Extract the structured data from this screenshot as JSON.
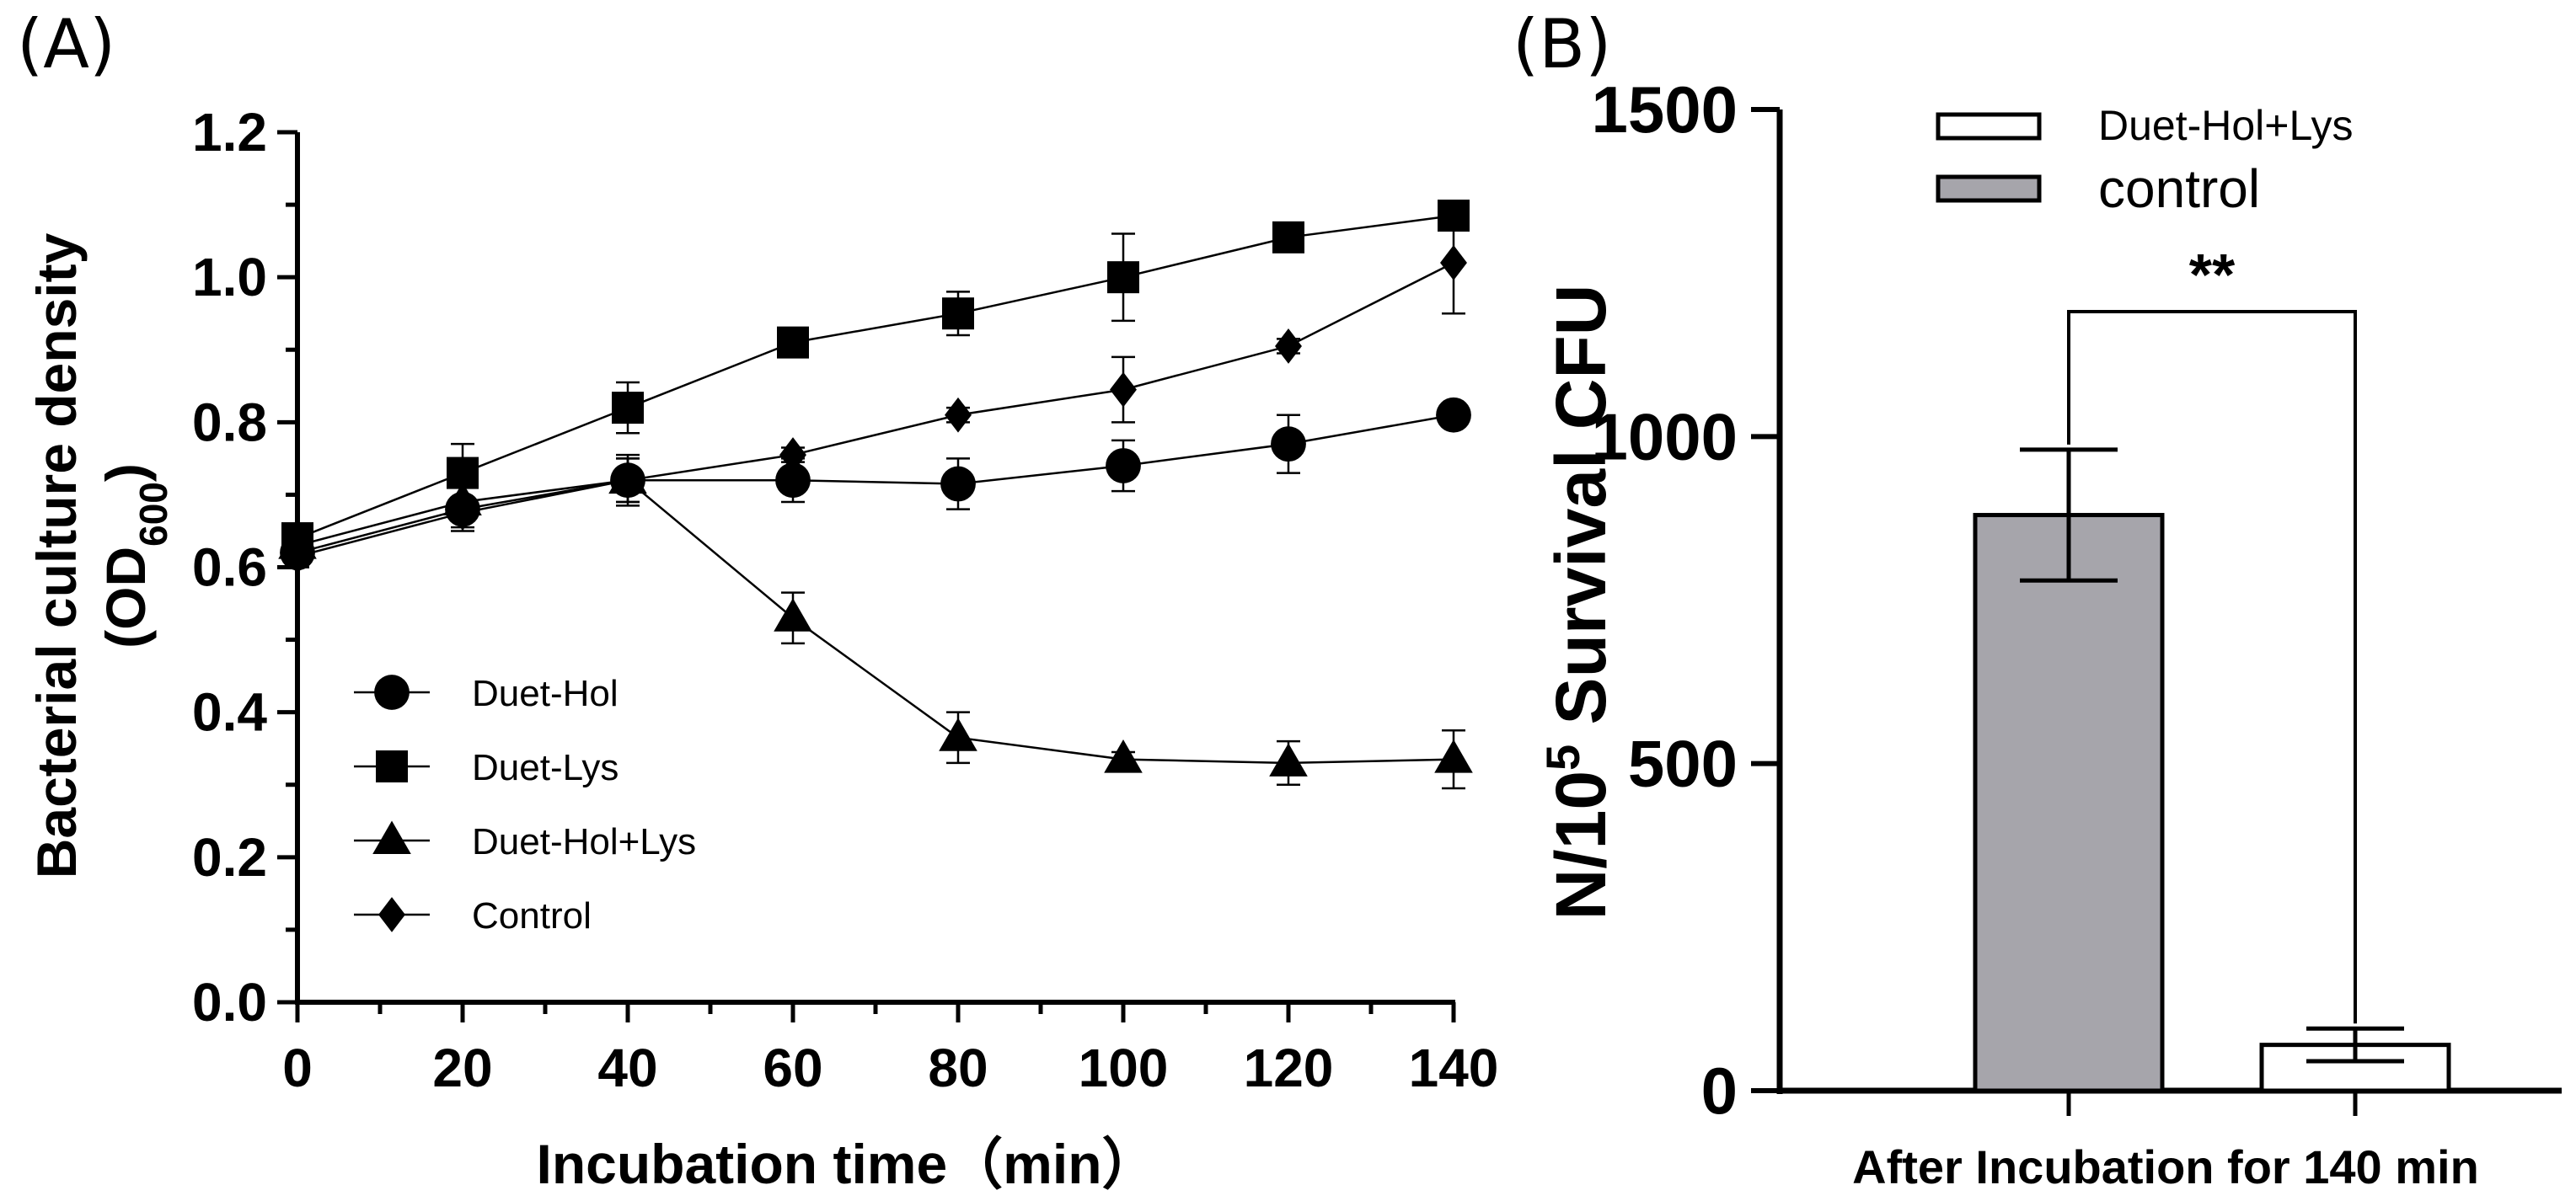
{
  "chart_data": [
    {
      "panel_label": "(A)",
      "type": "line",
      "title": "",
      "xlabel": "Incubation time（min）",
      "ylabel": "Bacterial culture density",
      "ylabel_line2": {
        "main": "(OD",
        "sub": "600",
        "close": ")"
      },
      "x": [
        0,
        20,
        40,
        60,
        80,
        100,
        120,
        140
      ],
      "xlim": [
        0,
        140
      ],
      "ylim": [
        0.0,
        1.2
      ],
      "xticks": [
        "0",
        "20",
        "40",
        "60",
        "80",
        "100",
        "120",
        "140"
      ],
      "yticks": [
        "0.0",
        "0.2",
        "0.4",
        "0.6",
        "0.8",
        "1.0",
        "1.2"
      ],
      "grid": false,
      "legend_position": "bottom-left",
      "series": [
        {
          "name": "Duet-Hol",
          "marker": "circle",
          "color": "#000000",
          "values": [
            0.62,
            0.68,
            0.72,
            0.72,
            0.715,
            0.74,
            0.77,
            0.81
          ],
          "errors": [
            0.02,
            0.03,
            0.03,
            0.03,
            0.035,
            0.035,
            0.04,
            0.015
          ]
        },
        {
          "name": "Duet-Lys",
          "marker": "square",
          "color": "#000000",
          "values": [
            0.64,
            0.73,
            0.82,
            0.91,
            0.95,
            1.0,
            1.055,
            1.085
          ],
          "errors": [
            0.02,
            0.04,
            0.035,
            0.015,
            0.03,
            0.06,
            0.015,
            0.015
          ]
        },
        {
          "name": "Duet-Hol+Lys",
          "marker": "triangle",
          "color": "#000000",
          "values": [
            0.63,
            0.69,
            0.72,
            0.53,
            0.365,
            0.335,
            0.33,
            0.335
          ],
          "errors": [
            0.02,
            0.025,
            0.035,
            0.035,
            0.035,
            0.01,
            0.03,
            0.04
          ]
        },
        {
          "name": "Control",
          "marker": "diamond",
          "color": "#000000",
          "values": [
            0.615,
            0.675,
            0.72,
            0.755,
            0.81,
            0.845,
            0.905,
            1.02
          ],
          "errors": [
            0.015,
            0.02,
            0.03,
            0.01,
            0.01,
            0.045,
            0.01,
            0.07
          ]
        }
      ]
    },
    {
      "panel_label": "(B)",
      "type": "bar",
      "title": "",
      "xlabel": "After Incubation for 140 min",
      "ylabel": {
        "prefix": "N/10",
        "sup": "5",
        "suffix": " Survival CFU"
      },
      "ylim": [
        0,
        1500
      ],
      "yticks": [
        "0",
        "500",
        "1000",
        "1500"
      ],
      "grid": false,
      "legend_position": "top",
      "categories": [
        "control",
        "Duet-Hol+Lys"
      ],
      "values": [
        880,
        70
      ],
      "errors": [
        100,
        25
      ],
      "legend": [
        {
          "name": "Duet-Hol+Lys",
          "fill": "#ffffff"
        },
        {
          "name": "control",
          "fill": "#a6a5ab"
        }
      ],
      "significance": "**"
    }
  ]
}
